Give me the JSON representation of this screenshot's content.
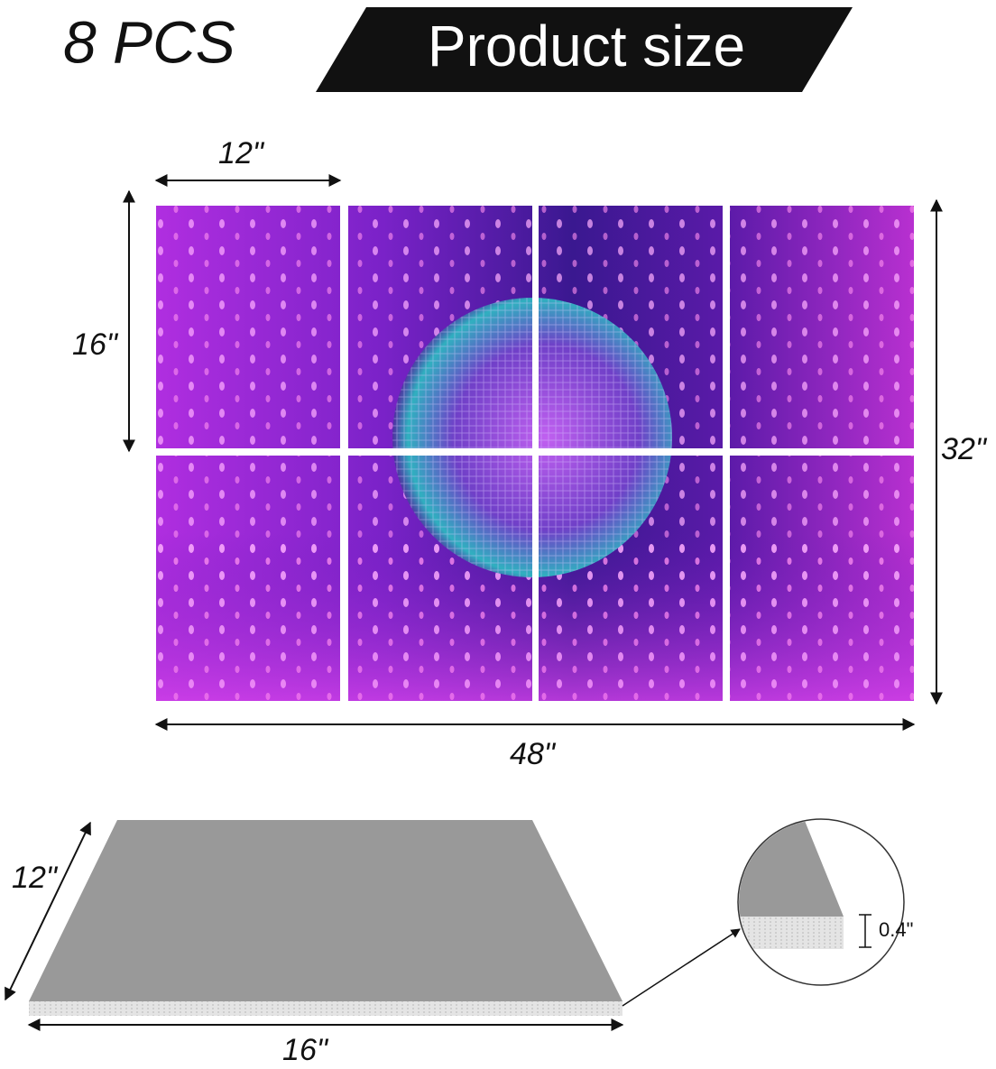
{
  "header": {
    "count": "8 PCS",
    "title": "Product size"
  },
  "panels": {
    "single_width": "12\"",
    "single_height": "16\"",
    "total_height": "32\"",
    "total_width": "48\""
  },
  "board": {
    "depth": "12\"",
    "width": "16\"",
    "thickness": "0.4\""
  }
}
